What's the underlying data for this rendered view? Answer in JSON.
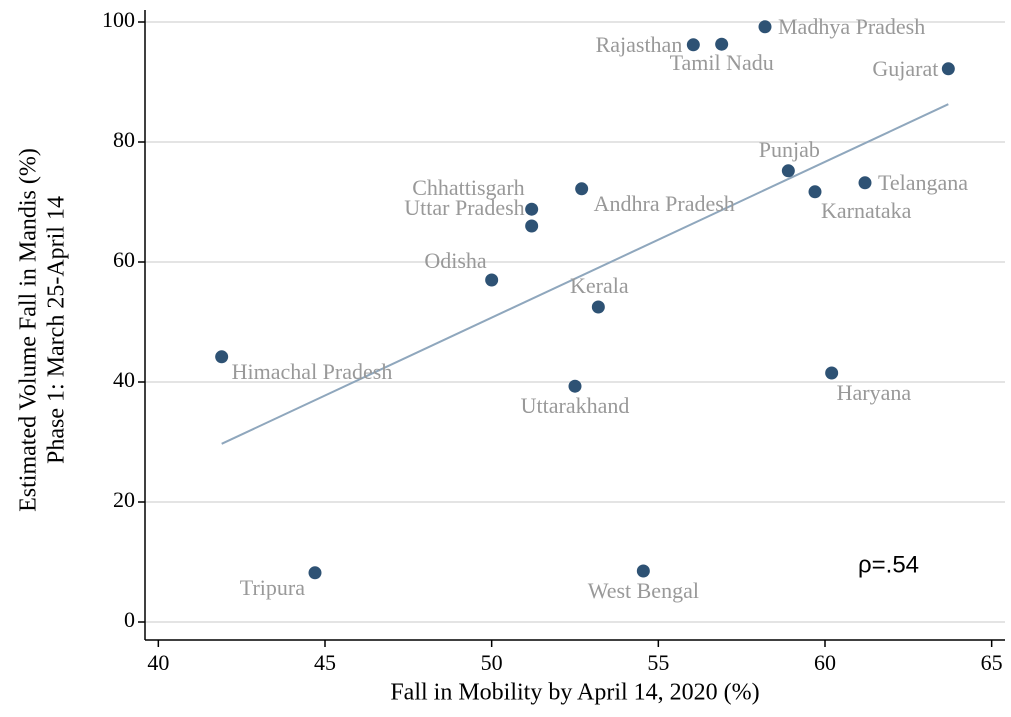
{
  "chart_data": {
    "type": "scatter",
    "x_label": "Fall in Mobility by April 14, 2020 (%)",
    "y_label": [
      "Estimated Volume Fall in Mandis (%)",
      "Phase 1: March 25-April 14"
    ],
    "annotation": "ρ=.54",
    "xlim": [
      39.6,
      65.4
    ],
    "xticks": [
      40,
      45,
      50,
      55,
      60,
      65
    ],
    "ylim": [
      -3,
      102
    ],
    "yticks": [
      0,
      20,
      40,
      60,
      80,
      100
    ],
    "grid": true,
    "color": "#2e5274",
    "label_color": "#999999",
    "labels": [
      "Madhya Pradesh",
      "Rajasthan",
      "Tamil Nadu",
      "Gujarat",
      "Punjab",
      "Telangana",
      "Karnataka",
      "Andhra Pradesh",
      "Chhattisgarh",
      "Uttar Pradesh",
      "Odisha",
      "Kerala",
      "Himachal Pradesh",
      "Uttarakhand",
      "Haryana",
      "Tripura",
      "West Bengal"
    ],
    "x": [
      58.2,
      56.05,
      56.9,
      63.7,
      58.9,
      61.2,
      59.7,
      52.7,
      51.2,
      51.2,
      50.0,
      53.2,
      41.9,
      52.5,
      60.2,
      44.7,
      54.55
    ],
    "y": [
      99.2,
      96.2,
      96.3,
      92.2,
      75.2,
      73.2,
      71.7,
      72.2,
      68.8,
      66.0,
      57.0,
      52.5,
      44.2,
      39.3,
      41.5,
      8.2,
      8.5
    ],
    "fit_line": {
      "color": "#8fa7bd",
      "x": [
        41.9,
        63.7
      ],
      "y": [
        29.7,
        86.3
      ]
    }
  }
}
